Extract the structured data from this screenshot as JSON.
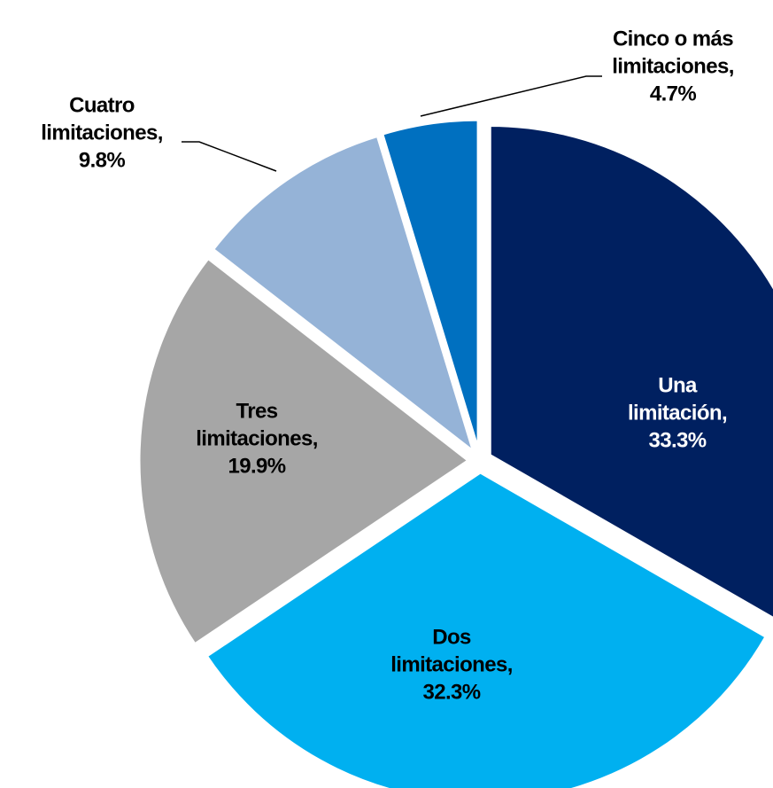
{
  "chart_data": {
    "type": "pie",
    "categories": [
      "Una limitación,",
      "Dos limitaciones,",
      "Tres limitaciones,",
      "Cuatro limitaciones,",
      "Cinco o más limitaciones,"
    ],
    "values": [
      33.3,
      32.3,
      19.9,
      9.8,
      4.7
    ],
    "value_labels": [
      "33.3%",
      "32.3%",
      "19.9%",
      "9.8%",
      "4.7%"
    ],
    "colors": [
      "#002060",
      "#00b0f0",
      "#a6a6a6",
      "#95b3d7",
      "#0070c0"
    ]
  }
}
